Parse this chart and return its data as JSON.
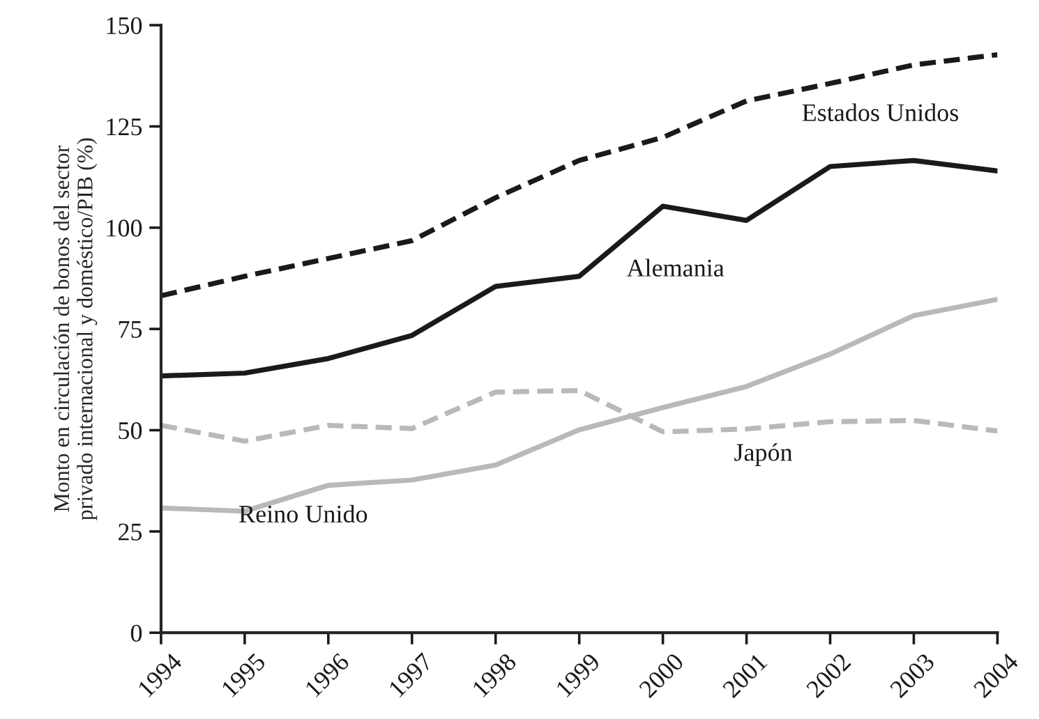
{
  "chart_data": {
    "type": "line",
    "ylabel": "Monto en circulación de bonos del sector\nprivado internacional y doméstico/PIB (%)",
    "x": [
      1994,
      1995,
      1996,
      1997,
      1998,
      1999,
      2000,
      2001,
      2002,
      2003,
      2004
    ],
    "xlim": [
      1994,
      2004
    ],
    "xticks": [
      1994,
      1995,
      1996,
      1997,
      1998,
      1999,
      2000,
      2001,
      2002,
      2003,
      2004
    ],
    "ylim": [
      0,
      150
    ],
    "yticks": [
      0,
      25,
      50,
      75,
      100,
      125,
      150
    ],
    "grid": false,
    "legend": false,
    "marker": "none",
    "series": [
      {
        "name": "Estados Unidos",
        "color": "#1a1a1a",
        "line_style": "dashed",
        "values": [
          83.2,
          88,
          92.4,
          96.8,
          107.4,
          116.6,
          122.3,
          131.3,
          135.6,
          140.2,
          142.7
        ]
      },
      {
        "name": "Alemania",
        "color": "#1a1a1a",
        "line_style": "solid",
        "values": [
          63.4,
          64.1,
          67.7,
          73.4,
          85.5,
          88,
          105.3,
          101.8,
          115.1,
          116.6,
          114.0
        ]
      },
      {
        "name": "Japón",
        "color": "#b9b9bb",
        "line_style": "dashed",
        "values": [
          51.2,
          47.3,
          51.2,
          50.4,
          59.4,
          59.8,
          49.6,
          50.3,
          52.1,
          52.4,
          49.8
        ]
      },
      {
        "name": "Reino Unido",
        "color": "#b9b9bb",
        "line_style": "solid",
        "values": [
          30.8,
          30.0,
          36.4,
          37.7,
          41.4,
          50.1,
          55.6,
          60.8,
          68.8,
          78.3,
          82.3
        ]
      }
    ]
  }
}
